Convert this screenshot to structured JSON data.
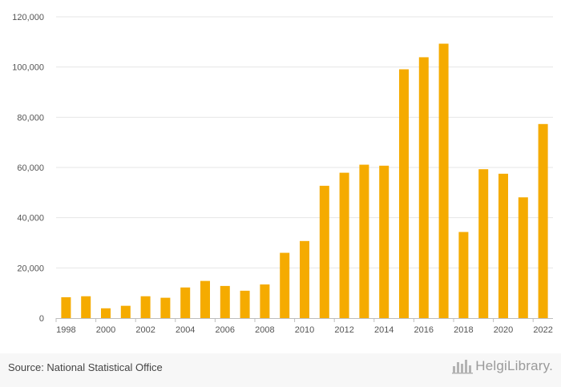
{
  "chart_data": {
    "type": "bar",
    "categories": [
      "1998",
      "1999",
      "2000",
      "2001",
      "2002",
      "2003",
      "2004",
      "2005",
      "2006",
      "2007",
      "2008",
      "2009",
      "2010",
      "2011",
      "2012",
      "2013",
      "2014",
      "2015",
      "2016",
      "2017",
      "2018",
      "2019",
      "2020",
      "2021",
      "2022"
    ],
    "values": [
      8300,
      8700,
      3900,
      4900,
      8700,
      8100,
      12200,
      14800,
      12800,
      10900,
      13400,
      26000,
      30700,
      52700,
      57900,
      61100,
      60700,
      99100,
      103900,
      109300,
      34300,
      59300,
      57500,
      48100,
      77300
    ],
    "x_tick_labels": [
      "1998",
      "2000",
      "2002",
      "2004",
      "2006",
      "2008",
      "2010",
      "2012",
      "2014",
      "2016",
      "2018",
      "2020",
      "2022"
    ],
    "y_tick_labels": [
      "0",
      "20,000",
      "40,000",
      "60,000",
      "80,000",
      "100,000",
      "120,000"
    ],
    "ylim": [
      0,
      120000
    ],
    "grid": true,
    "bar_color": "#f5ab00",
    "title": "",
    "xlabel": "",
    "ylabel": ""
  },
  "footer": {
    "source": "Source: National Statistical Office",
    "brand": "HelgiLibrary.",
    "brand_icon": "helgi-logo-icon"
  }
}
